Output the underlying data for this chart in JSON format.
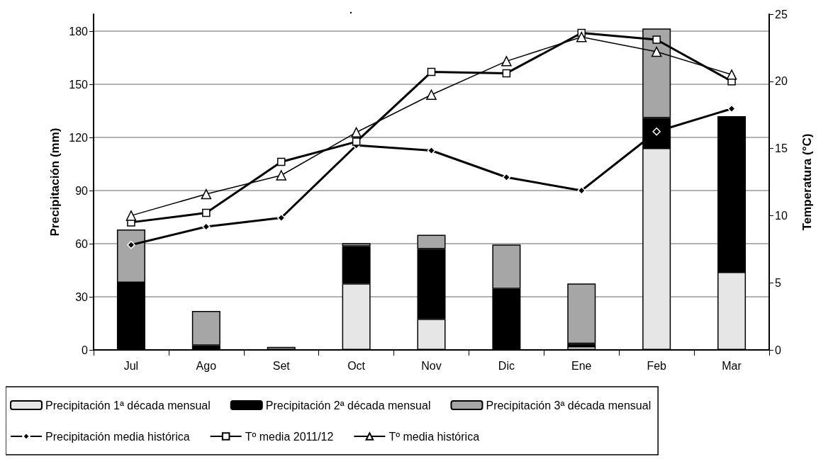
{
  "chart_data": {
    "type": "bar",
    "title": ".",
    "ylabel": "Precipitación (mm)",
    "y2label": "Temperatura (°C)",
    "categories": [
      "Jul",
      "Ago",
      "Set",
      "Oct",
      "Nov",
      "Dic",
      "Ene",
      "Feb",
      "Mar"
    ],
    "stacked": true,
    "ylim": [
      0,
      189.6
    ],
    "yticks": [
      0,
      30,
      60,
      90,
      120,
      150,
      180
    ],
    "y2lim": [
      0,
      25
    ],
    "y2ticks": [
      0,
      5,
      10,
      15,
      20,
      25
    ],
    "grid": "y",
    "legend": "bottom",
    "series": [
      {
        "name": "Precipitación 1ª década mensual",
        "color": "#e6e6e6",
        "values": [
          0,
          0,
          0,
          37.5,
          17.5,
          0,
          2,
          114,
          44
        ]
      },
      {
        "name": "Precipitación 2ª década mensual",
        "color": "#000000",
        "values": [
          38,
          2.5,
          0,
          21,
          39.5,
          34.5,
          1.5,
          17,
          88
        ]
      },
      {
        "name": "Precipitación 3ª década mensual",
        "color": "#a6a6a6",
        "values": [
          30,
          19.5,
          1.7,
          1.8,
          8,
          25,
          34,
          50.5,
          0
        ]
      },
      {
        "name": "Precipitación media histórica",
        "type": "line",
        "color": "#000000",
        "marker": "diamond",
        "values": [
          59.3,
          69.6,
          74.6,
          115.5,
          112.6,
          97.5,
          90,
          123.3,
          136.2
        ]
      },
      {
        "name": "Tº media 2011/12",
        "type": "line",
        "axis": "y2",
        "color": "#000000",
        "marker": "square",
        "values": [
          9.5,
          10.2,
          14,
          15.5,
          20.7,
          20.6,
          23.6,
          23.1,
          20
        ]
      },
      {
        "name": "Tº media histórica",
        "type": "line",
        "axis": "y2",
        "color": "#000000",
        "marker": "triangle",
        "values": [
          10,
          11.6,
          13,
          16.2,
          19,
          21.5,
          23.3,
          22.2,
          20.5
        ]
      }
    ]
  }
}
